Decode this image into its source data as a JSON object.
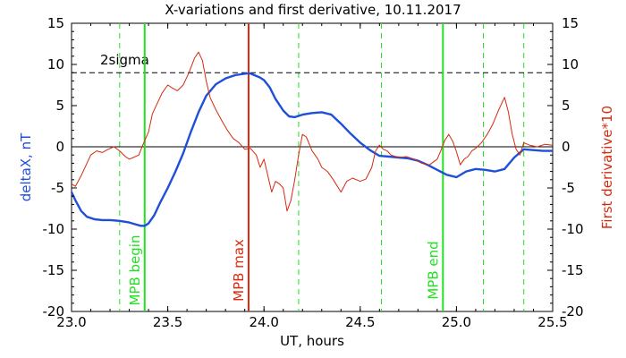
{
  "chart_data": {
    "type": "line",
    "title": "X-variations and first derivative, 10.11.2017",
    "xlabel": "UT, hours",
    "ylabel_left": "deltaX, nT",
    "ylabel_right": "First derivative*10",
    "xlim": [
      23.0,
      25.5
    ],
    "ylim": [
      -20,
      15
    ],
    "x_ticks": [
      "23.0",
      "23.5",
      "24.0",
      "24.5",
      "25.0",
      "25.5"
    ],
    "y_ticks": [
      "15",
      "10",
      "5",
      "0",
      "-5",
      "-10",
      "-15",
      "-20"
    ],
    "colors": {
      "deltaX": "#1f4fd8",
      "derivative": "#d42a10",
      "mpb_edge": "#22e022",
      "mpb_max": "#dd2a10",
      "reference": "#000000"
    },
    "series": [
      {
        "name": "deltaX, nT",
        "axis": "left",
        "x": [
          23.0,
          23.02,
          23.05,
          23.08,
          23.12,
          23.16,
          23.2,
          23.25,
          23.3,
          23.33,
          23.36,
          23.38,
          23.4,
          23.43,
          23.46,
          23.5,
          23.54,
          23.58,
          23.62,
          23.66,
          23.7,
          23.75,
          23.8,
          23.85,
          23.88,
          23.91,
          23.93,
          23.96,
          23.98,
          24.0,
          24.03,
          24.06,
          24.1,
          24.13,
          24.16,
          24.2,
          24.25,
          24.3,
          24.35,
          24.4,
          24.45,
          24.5,
          24.55,
          24.6,
          24.65,
          24.7,
          24.75,
          24.8,
          24.85,
          24.9,
          24.95,
          25.0,
          25.05,
          25.1,
          25.15,
          25.2,
          25.25,
          25.3,
          25.35,
          25.4,
          25.45,
          25.5
        ],
        "values": [
          -5.5,
          -6.5,
          -7.8,
          -8.5,
          -8.8,
          -8.9,
          -8.9,
          -9.0,
          -9.2,
          -9.4,
          -9.6,
          -9.6,
          -9.3,
          -8.3,
          -6.8,
          -5.0,
          -3.0,
          -0.8,
          1.8,
          4.2,
          6.2,
          7.6,
          8.3,
          8.7,
          8.8,
          8.9,
          8.9,
          8.6,
          8.4,
          8.1,
          7.2,
          5.8,
          4.4,
          3.7,
          3.6,
          3.9,
          4.1,
          4.2,
          3.9,
          2.8,
          1.6,
          0.5,
          -0.4,
          -1.1,
          -1.2,
          -1.3,
          -1.4,
          -1.7,
          -2.2,
          -2.8,
          -3.4,
          -3.7,
          -3.0,
          -2.7,
          -2.8,
          -3.0,
          -2.7,
          -1.3,
          -0.3,
          -0.4,
          -0.5,
          -0.5
        ]
      },
      {
        "name": "First derivative*10",
        "axis": "right",
        "x": [
          23.0,
          23.02,
          23.05,
          23.08,
          23.1,
          23.13,
          23.16,
          23.19,
          23.22,
          23.25,
          23.28,
          23.3,
          23.32,
          23.35,
          23.37,
          23.4,
          23.42,
          23.45,
          23.47,
          23.5,
          23.52,
          23.55,
          23.58,
          23.61,
          23.64,
          23.66,
          23.68,
          23.7,
          23.72,
          23.75,
          23.78,
          23.81,
          23.84,
          23.87,
          23.9,
          23.93,
          23.96,
          23.98,
          24.0,
          24.02,
          24.04,
          24.06,
          24.08,
          24.1,
          24.12,
          24.14,
          24.16,
          24.18,
          24.2,
          24.22,
          24.25,
          24.28,
          24.3,
          24.33,
          24.36,
          24.4,
          24.43,
          24.46,
          24.5,
          24.53,
          24.56,
          24.58,
          24.6,
          24.62,
          24.64,
          24.66,
          24.7,
          24.74,
          24.78,
          24.82,
          24.86,
          24.9,
          24.92,
          24.94,
          24.96,
          24.98,
          25.0,
          25.02,
          25.04,
          25.06,
          25.08,
          25.1,
          25.13,
          25.16,
          25.19,
          25.22,
          25.25,
          25.27,
          25.29,
          25.31,
          25.33,
          25.35,
          25.38,
          25.42,
          25.46,
          25.5
        ],
        "values": [
          -4.5,
          -4.8,
          -3.5,
          -2.0,
          -1.0,
          -0.5,
          -0.7,
          -0.3,
          0.0,
          -0.5,
          -1.2,
          -1.5,
          -1.3,
          -1.0,
          0.2,
          1.8,
          4.0,
          5.5,
          6.5,
          7.5,
          7.2,
          6.8,
          7.5,
          9.0,
          10.8,
          11.5,
          10.5,
          8.0,
          6.0,
          4.5,
          3.2,
          2.0,
          1.0,
          0.5,
          -0.3,
          -0.2,
          -1.0,
          -2.5,
          -1.5,
          -3.5,
          -5.5,
          -4.2,
          -4.5,
          -5.0,
          -7.8,
          -6.5,
          -4.0,
          -1.0,
          1.5,
          1.2,
          -0.5,
          -1.5,
          -2.5,
          -3.0,
          -4.0,
          -5.5,
          -4.2,
          -3.8,
          -4.2,
          -3.9,
          -2.5,
          -0.5,
          0.2,
          -0.3,
          -0.5,
          -1.0,
          -1.3,
          -1.2,
          -1.5,
          -2.0,
          -2.2,
          -1.5,
          -0.4,
          0.8,
          1.5,
          0.7,
          -0.6,
          -2.2,
          -1.5,
          -1.2,
          -0.5,
          -0.2,
          0.5,
          1.5,
          2.8,
          4.5,
          6.0,
          4.2,
          1.5,
          -0.3,
          -1.0,
          0.5,
          0.2,
          0.0,
          0.3,
          0.2
        ]
      }
    ],
    "reference_lines": [
      {
        "label": "2sigma",
        "y": 9,
        "style": "dashed"
      },
      {
        "label": "",
        "y": 0,
        "style": "solid"
      }
    ],
    "markers": [
      {
        "label": "MPB begin",
        "x": 23.38,
        "style": "solid",
        "color": "mpb_edge"
      },
      {
        "label": "MPB max",
        "x": 23.92,
        "style": "solid",
        "color": "mpb_max"
      },
      {
        "label": "MPB end",
        "x": 24.93,
        "style": "solid",
        "color": "mpb_edge"
      }
    ],
    "dashed_markers": [
      23.25,
      24.18,
      24.61,
      25.14,
      25.35
    ],
    "legend": "none",
    "grid": false
  }
}
